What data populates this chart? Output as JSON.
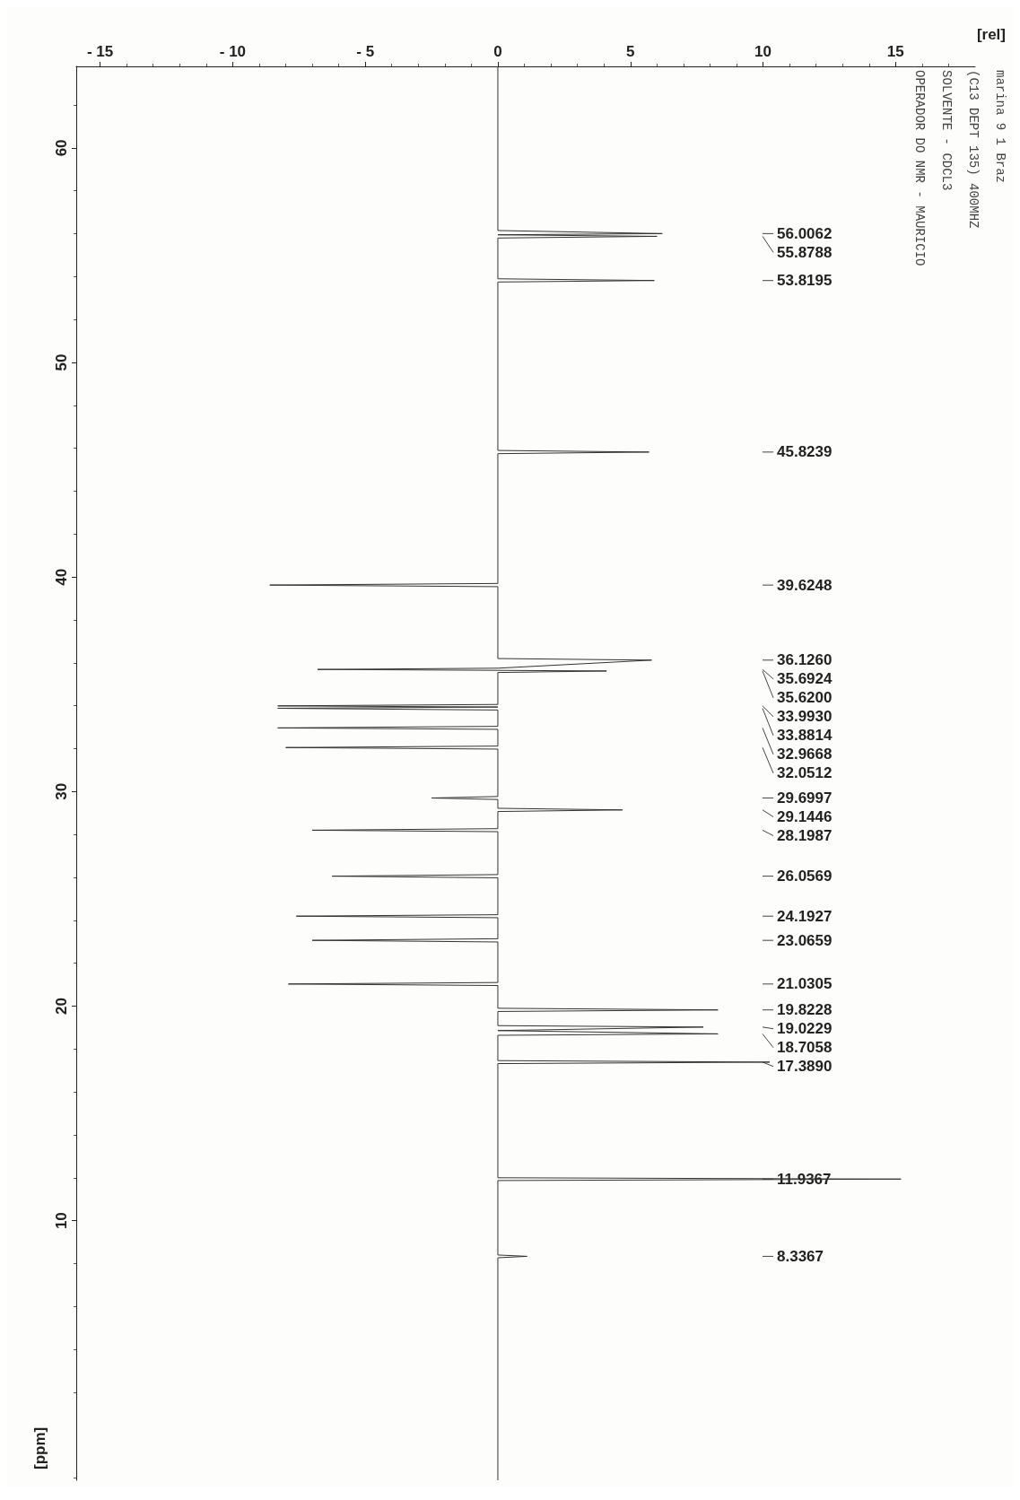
{
  "chart_data": {
    "type": "line",
    "orientation": "horizontal",
    "xlabel": "[rel]",
    "ylabel": "[ppm]",
    "x": [
      63.8,
      56.15,
      56.0062,
      55.95,
      55.8788,
      55.8,
      53.9,
      53.8195,
      53.75,
      45.9,
      45.8239,
      45.75,
      39.7,
      39.6248,
      39.55,
      36.2,
      36.126,
      35.75,
      35.6924,
      35.65,
      35.62,
      35.55,
      34.06,
      33.993,
      33.94,
      33.8814,
      33.8,
      33.04,
      32.9668,
      32.9,
      32.12,
      32.0512,
      31.98,
      29.77,
      29.6997,
      29.63,
      29.22,
      29.1446,
      29.07,
      28.27,
      28.1987,
      28.13,
      26.13,
      26.0569,
      25.98,
      24.26,
      24.1927,
      24.12,
      23.14,
      23.0659,
      22.99,
      21.1,
      21.0305,
      20.96,
      19.9,
      19.8228,
      19.75,
      19.09,
      19.0229,
      18.86,
      18.7058,
      18.64,
      17.46,
      17.389,
      17.32,
      12.0,
      11.9367,
      11.87,
      8.4,
      8.3367,
      8.27,
      -2.1
    ],
    "series": [
      {
        "color": "#333333",
        "values": [
          0,
          0,
          6.2,
          0,
          6.0,
          0,
          0,
          5.9,
          0,
          0,
          5.7,
          0,
          0,
          -8.6,
          0,
          0,
          5.8,
          0,
          -6.8,
          0,
          4.1,
          0,
          0,
          -8.3,
          0,
          -8.3,
          0,
          0,
          -8.3,
          0,
          0,
          -8.0,
          0,
          0,
          -2.5,
          0,
          0,
          4.7,
          0,
          0,
          -7.0,
          0,
          0,
          -6.25,
          0,
          0,
          -7.6,
          0,
          0,
          -7.0,
          0,
          0,
          -7.9,
          0,
          0,
          8.3,
          0,
          0,
          7.75,
          0,
          8.3,
          0,
          0,
          10.25,
          0,
          0,
          15.2,
          0,
          0,
          1.1,
          0,
          0
        ]
      }
    ],
    "xlim": [
      -15.9,
      18
    ],
    "xticks": [
      {
        "value": -15,
        "label": "- 15"
      },
      {
        "value": -10,
        "label": "- 10"
      },
      {
        "value": -5,
        "label": "- 5"
      },
      0,
      5,
      10,
      15
    ],
    "ylim": [
      -2.1,
      63.8
    ],
    "yticks": [
      10,
      20,
      30,
      40,
      50,
      60
    ],
    "marker": "none",
    "line_style": "solid",
    "grid": false,
    "annotations": [
      "56.0062",
      "55.8788",
      "53.8195",
      "45.8239",
      "39.6248",
      "36.1260",
      "35.6924",
      "35.6200",
      "33.9930",
      "33.8814",
      "32.9668",
      "32.0512",
      "29.6997",
      "29.1446",
      "28.1987",
      "26.0569",
      "24.1927",
      "23.0659",
      "21.0305",
      "19.8228",
      "19.0229",
      "18.7058",
      "17.3890",
      "11.9367",
      "8.3367",
      "marina 9 1 Braz",
      "(C13 DEPT 135) 400MHZ",
      "SOLVENTE - CDCL3",
      "OPERADOR DO NMR - MAURICIO"
    ]
  }
}
